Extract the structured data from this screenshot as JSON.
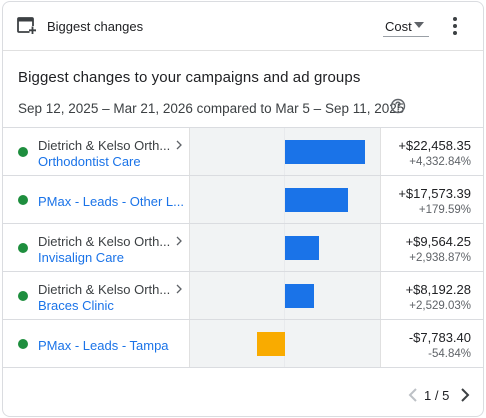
{
  "header": {
    "card_name": "Biggest changes",
    "metric_selected": "Cost",
    "card_icon": "add-card-icon",
    "menu_icon": "more-vert-icon"
  },
  "title": "Biggest changes to your campaigns and ad groups",
  "date_range": "Sep 12, 2025 – Mar 21, 2026 compared to Mar 5 – Sep 11, 2025",
  "colors": {
    "positive_bar": "#1a73e8",
    "negative_bar": "#f9ab00",
    "status_enabled": "#1e8e3e",
    "link": "#1a73e8"
  },
  "rows": [
    {
      "parent": "Dietrich & Kelso Orth...",
      "name": "Orthodontist Care",
      "change": "+$22,458.35",
      "percent": "+4,332.84%",
      "value": 22458.35
    },
    {
      "parent": "",
      "name": "PMax - Leads - Other L...",
      "change": "+$17,573.39",
      "percent": "+179.59%",
      "value": 17573.39
    },
    {
      "parent": "Dietrich & Kelso Orth...",
      "name": "Invisalign Care",
      "change": "+$9,564.25",
      "percent": "+2,938.87%",
      "value": 9564.25
    },
    {
      "parent": "Dietrich & Kelso Orth...",
      "name": "Braces Clinic",
      "change": "+$8,192.28",
      "percent": "+2,529.03%",
      "value": 8192.28
    },
    {
      "parent": "",
      "name": "PMax - Leads - Tampa",
      "change": "-$7,783.40",
      "percent": "-54.84%",
      "value": -7783.4
    }
  ],
  "pagination": {
    "text": "1 / 5"
  }
}
